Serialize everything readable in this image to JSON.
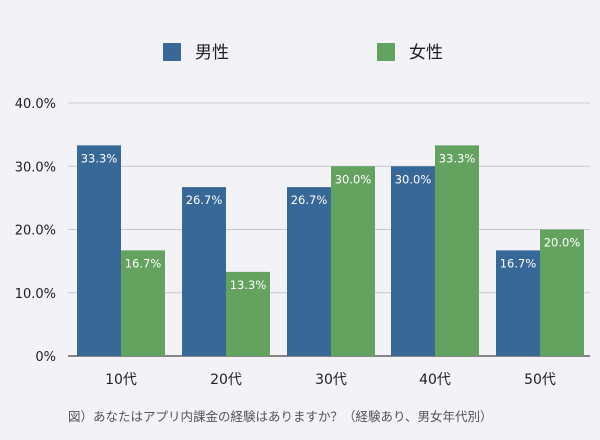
{
  "chart_data": {
    "type": "bar",
    "categories": [
      "10代",
      "20代",
      "30代",
      "40代",
      "50代"
    ],
    "series": [
      {
        "name": "男性",
        "values": [
          33.3,
          26.7,
          26.7,
          30.0,
          16.7
        ],
        "labels": [
          "33.3%",
          "26.7%",
          "26.7%",
          "30.0%",
          "16.7%"
        ],
        "color": "#376897"
      },
      {
        "name": "女性",
        "values": [
          16.7,
          13.3,
          30.0,
          33.3,
          20.0
        ],
        "labels": [
          "16.7%",
          "13.3%",
          "30.0%",
          "33.3%",
          "20.0%"
        ],
        "color": "#63a35f"
      }
    ],
    "yticks": [
      0,
      10,
      20,
      30,
      40
    ],
    "ytick_labels": [
      "0%",
      "10.0%",
      "20.0%",
      "30.0%",
      "40.0%"
    ],
    "ylim": [
      0,
      40
    ],
    "grid": true,
    "legend": "top-center"
  },
  "caption": "図）あなたはアプリ内課金の経験はありますか？（経験あり、男女年代別）"
}
